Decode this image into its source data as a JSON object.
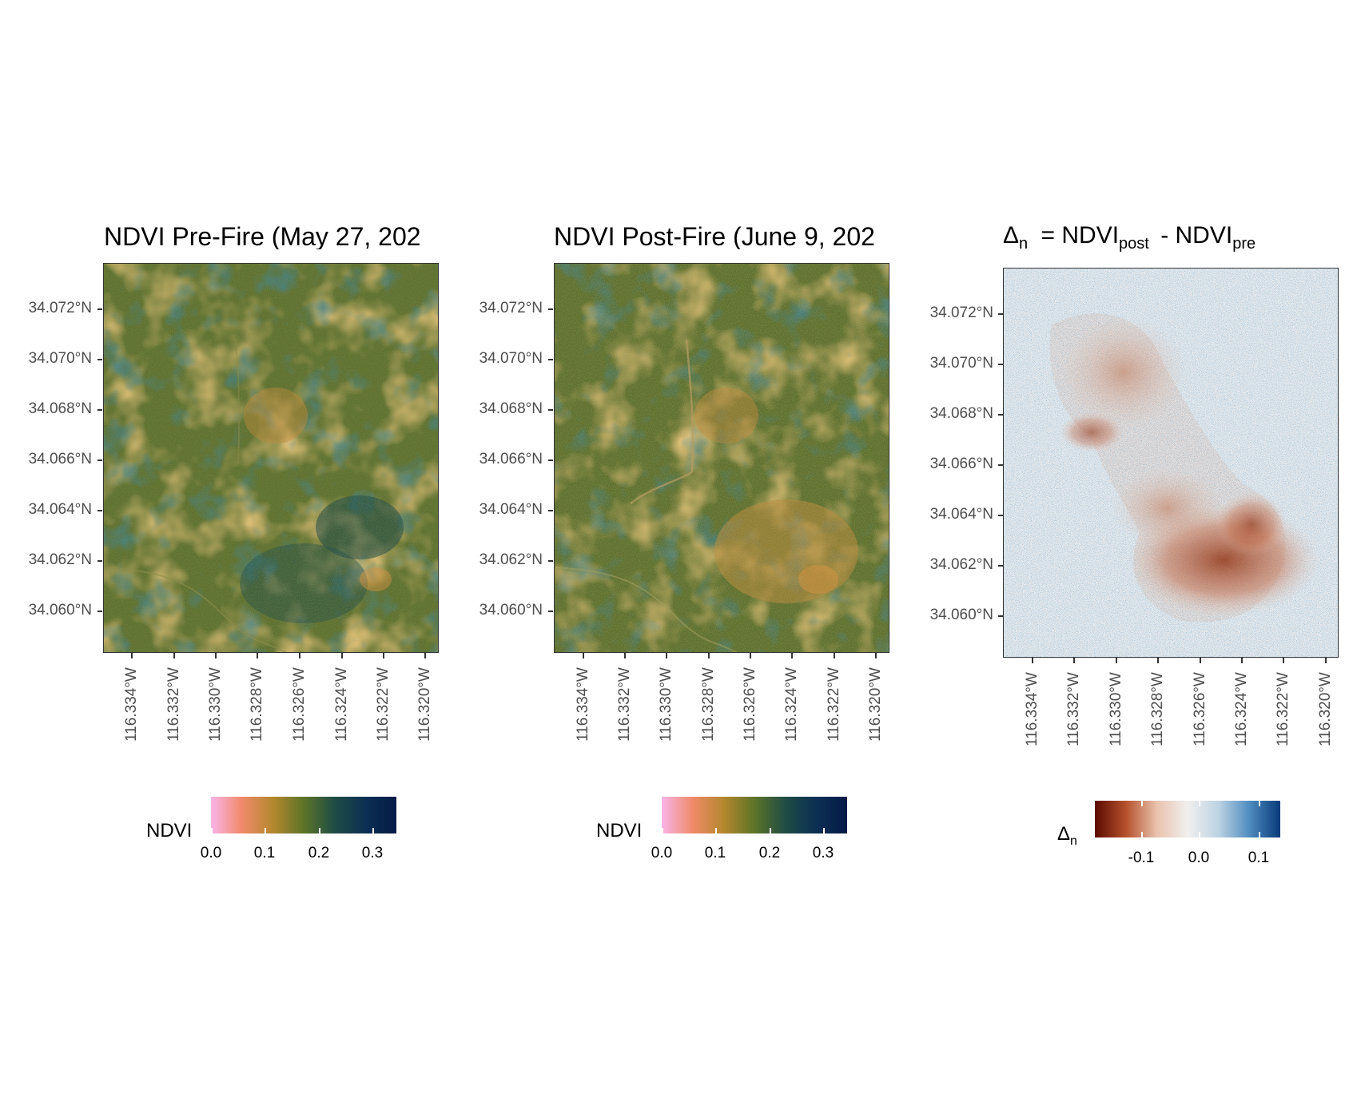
{
  "panels": [
    {
      "title": "NDVI Pre-Fire (May 27, 202",
      "y_ticks": [
        "34.072°N",
        "34.070°N",
        "34.068°N",
        "34.066°N",
        "34.064°N",
        "34.062°N",
        "34.060°N"
      ],
      "x_ticks": [
        "116.334°W",
        "116.332°W",
        "116.330°W",
        "116.328°W",
        "116.326°W",
        "116.324°W",
        "116.322°W",
        "116.320°W"
      ],
      "legend": {
        "title": "NDVI",
        "ticks": [
          "0.0",
          "0.1",
          "0.2",
          "0.3"
        ]
      }
    },
    {
      "title": "NDVI Post-Fire (June 9, 202",
      "y_ticks": [
        "34.072°N",
        "34.070°N",
        "34.068°N",
        "34.066°N",
        "34.064°N",
        "34.062°N",
        "34.060°N"
      ],
      "x_ticks": [
        "116.334°W",
        "116.332°W",
        "116.330°W",
        "116.328°W",
        "116.326°W",
        "116.324°W",
        "116.322°W",
        "116.320°W"
      ],
      "legend": {
        "title": "NDVI",
        "ticks": [
          "0.0",
          "0.1",
          "0.2",
          "0.3"
        ]
      }
    },
    {
      "title_parts": {
        "delta": "Δ",
        "delta_sub": "n",
        "eq": " = NDVI",
        "post_sub": "post",
        "minus": " - NDVI",
        "pre_sub": "pre"
      },
      "y_ticks": [
        "34.072°N",
        "34.070°N",
        "34.068°N",
        "34.066°N",
        "34.064°N",
        "34.062°N",
        "34.060°N"
      ],
      "x_ticks": [
        "116.334°W",
        "116.332°W",
        "116.330°W",
        "116.328°W",
        "116.326°W",
        "116.324°W",
        "116.322°W",
        "116.320°W"
      ],
      "legend": {
        "title": "Δ",
        "title_sub": "n",
        "ticks": [
          "-0.1",
          "0.0",
          "0.1"
        ]
      }
    }
  ],
  "colors": {
    "ndvi_scale": [
      "#f9b4e8",
      "#f08a6a",
      "#b5872e",
      "#5d7428",
      "#1f4d45",
      "#0b2f53",
      "#061a48"
    ],
    "delta_scale": [
      "#5a0a00",
      "#b5502b",
      "#e9c2ad",
      "#f0efee",
      "#bdd3e3",
      "#4f8cbf",
      "#073b7a"
    ]
  },
  "map_data": {
    "extent": {
      "lon": [
        -116.3347,
        -116.3197
      ],
      "lat": [
        34.0585,
        34.0738
      ]
    },
    "ndvi_range": [
      0.0,
      0.34
    ],
    "delta_range": [
      -0.17,
      0.14
    ]
  }
}
